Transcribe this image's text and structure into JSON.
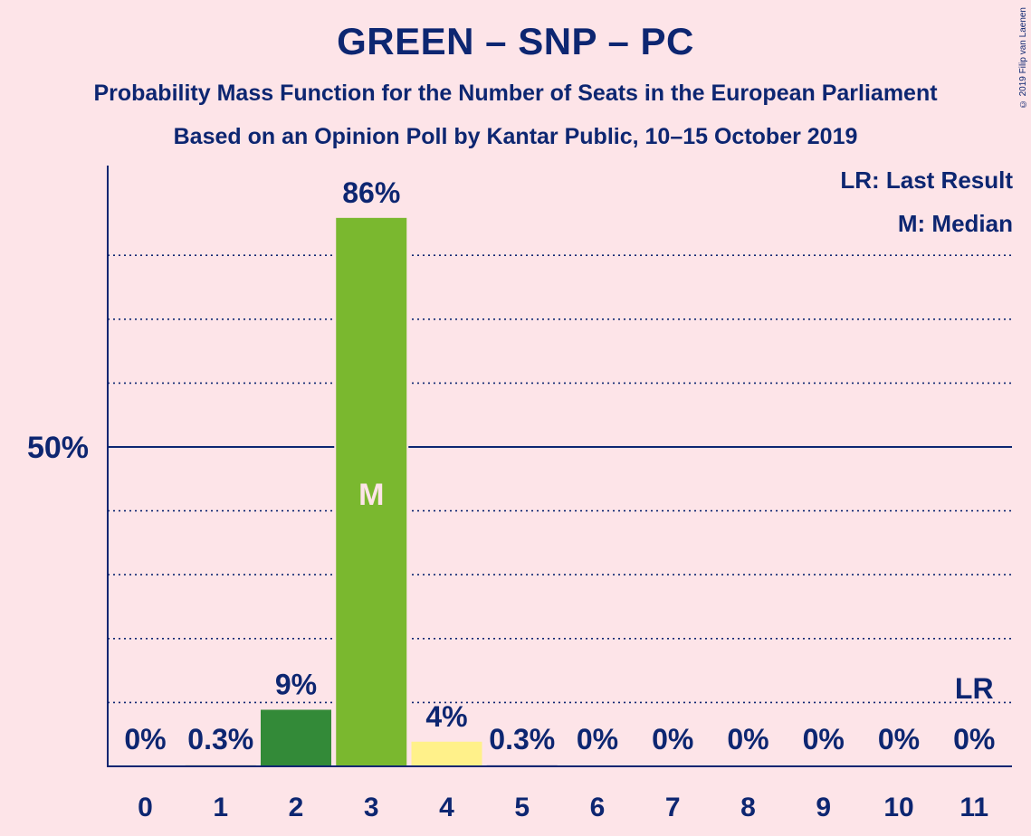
{
  "header": {
    "title": "GREEN – SNP – PC",
    "subtitle": "Probability Mass Function for the Number of Seats in the European Parliament",
    "subtitle2": "Based on an Opinion Poll by Kantar Public, 10–15 October 2019",
    "copyright": "© 2019 Filip van Laenen"
  },
  "legend": {
    "last_result": "LR: Last Result",
    "median": "M: Median"
  },
  "chart_data": {
    "type": "bar",
    "categories": [
      "0",
      "1",
      "2",
      "3",
      "4",
      "5",
      "6",
      "7",
      "8",
      "9",
      "10",
      "11"
    ],
    "values": [
      0,
      0.3,
      9,
      86,
      4,
      0.3,
      0,
      0,
      0,
      0,
      0,
      0
    ],
    "labels": [
      "0%",
      "0.3%",
      "9%",
      "86%",
      "4%",
      "0.3%",
      "0%",
      "0%",
      "0%",
      "0%",
      "0%",
      "0%"
    ],
    "bar_colors": [
      "#338a38",
      "#338a38",
      "#338a38",
      "#7ab82f",
      "#fff18a",
      "#0d2671",
      "#0d2671",
      "#0d2671",
      "#0d2671",
      "#0d2671",
      "#0d2671",
      "#0d2671"
    ],
    "ylim": [
      0,
      95
    ],
    "ytick_label": "50%",
    "ytick_value": 50,
    "gridlines": [
      10,
      20,
      30,
      40,
      60,
      70,
      80
    ],
    "median_index": 3,
    "median_marker": "M",
    "last_result_index": 11,
    "last_result_marker": "LR",
    "colors": {
      "axis": "#0d2671",
      "background": "#fde4e8",
      "median_text": "#fde4e8"
    }
  }
}
